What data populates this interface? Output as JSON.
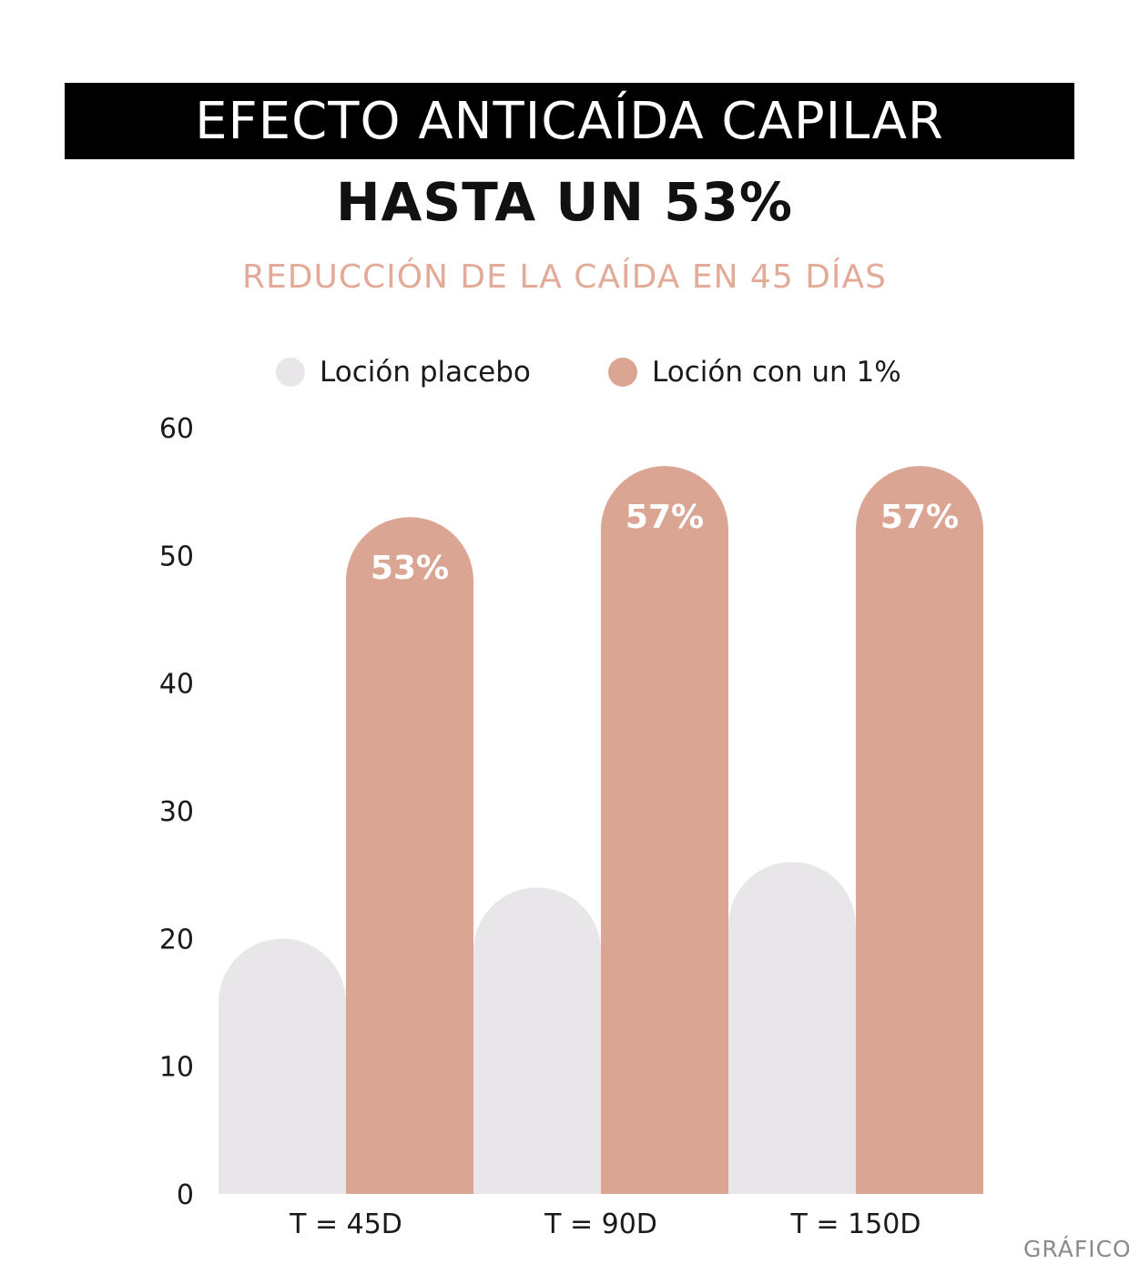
{
  "header": {
    "title": "EFECTO ANTICAÍDA CAPILAR",
    "headline": "HASTA UN 53%",
    "subtitle": "REDUCCIÓN DE LA CAÍDA EN 45 DÍAS"
  },
  "footer": {
    "credit": "GRÁFICO"
  },
  "colors": {
    "placebo": "#e9e6ea",
    "treatment": "#dba593",
    "title_bg": "#000000",
    "subtitle": "#e3ab97"
  },
  "chart_data": {
    "type": "bar",
    "categories": [
      "T = 45D",
      "T = 90D",
      "T = 150D"
    ],
    "series": [
      {
        "name": "Loción placebo",
        "values": [
          20,
          24,
          26
        ],
        "labels": [
          "",
          "",
          ""
        ]
      },
      {
        "name": "Loción con un 1%",
        "values": [
          53,
          57,
          57
        ],
        "labels": [
          "53%",
          "57%",
          "57%"
        ]
      }
    ],
    "ylim": [
      0,
      60
    ],
    "yticks": [
      0,
      10,
      20,
      30,
      40,
      50,
      60
    ],
    "grid": false,
    "legend": "top-center",
    "title": "EFECTO ANTICAÍDA CAPILAR",
    "subtitle": "REDUCCIÓN DE LA CAÍDA EN 45 DÍAS",
    "xlabel": "",
    "ylabel": ""
  }
}
